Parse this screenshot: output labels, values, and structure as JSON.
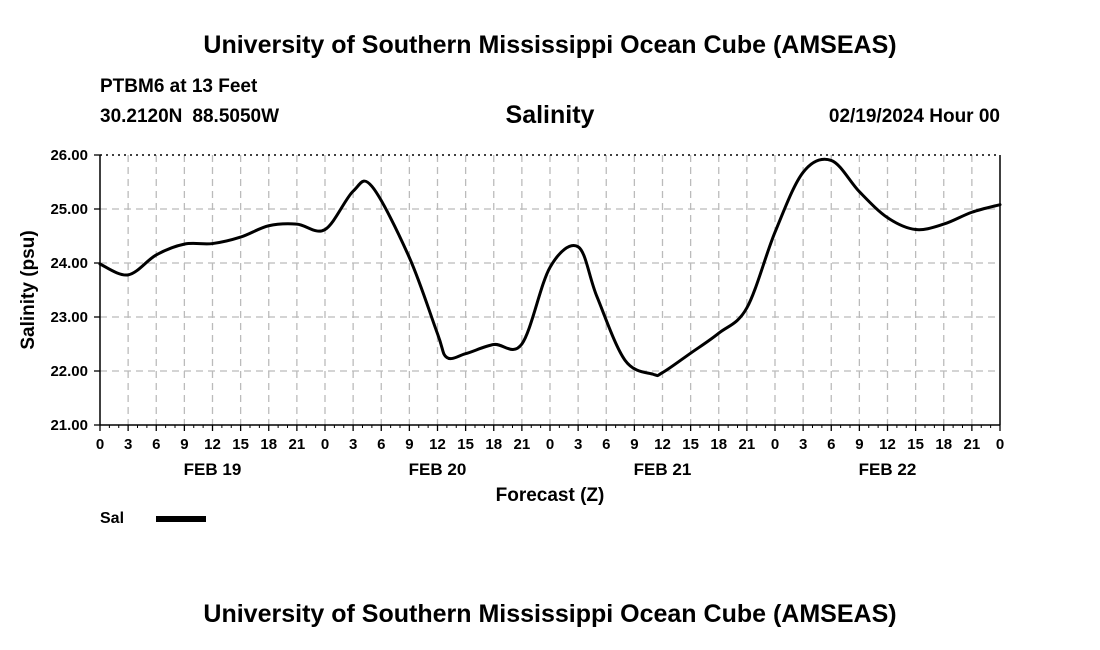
{
  "header": {
    "title": "University of Southern Mississippi Ocean Cube (AMSEAS)",
    "station": "PTBM6 at 13 Feet",
    "lat": "30.2120N",
    "lon": "88.5050W",
    "variable": "Salinity",
    "datetime": "02/19/2024 Hour 00"
  },
  "footer": {
    "title": "University of Southern Mississippi Ocean Cube (AMSEAS)"
  },
  "legend": {
    "label": "Sal",
    "color": "#000000"
  },
  "chart_data": {
    "type": "line",
    "title": "Salinity",
    "xlabel": "Forecast (Z)",
    "ylabel": "Salinity (psu)",
    "ylim": [
      21.0,
      26.0
    ],
    "y_ticks": [
      "21.00",
      "22.00",
      "23.00",
      "24.00",
      "25.00",
      "26.00"
    ],
    "xlim": [
      0,
      96
    ],
    "x_tick_labels": [
      "0",
      "3",
      "6",
      "9",
      "12",
      "15",
      "18",
      "21",
      "0",
      "3",
      "6",
      "9",
      "12",
      "15",
      "18",
      "21",
      "0",
      "3",
      "6",
      "9",
      "12",
      "15",
      "18",
      "21",
      "0",
      "3",
      "6",
      "9",
      "12",
      "15",
      "18",
      "21",
      "0"
    ],
    "day_labels": [
      {
        "label": "FEB 19",
        "hour": 12
      },
      {
        "label": "FEB 20",
        "hour": 36
      },
      {
        "label": "FEB 21",
        "hour": 60
      },
      {
        "label": "FEB 22",
        "hour": 84
      }
    ],
    "grid": true,
    "series": [
      {
        "name": "Sal",
        "color": "#000000",
        "x": [
          0,
          3,
          6,
          9,
          12,
          15,
          18,
          21,
          24,
          27,
          29,
          33,
          36,
          37,
          39,
          42,
          45,
          48,
          51,
          53,
          56,
          59,
          60,
          63,
          66,
          69,
          72,
          75,
          78,
          81,
          84,
          87,
          90,
          93,
          96
        ],
        "values": [
          23.98,
          23.78,
          24.15,
          24.35,
          24.36,
          24.48,
          24.69,
          24.72,
          24.62,
          25.33,
          25.42,
          24.1,
          22.69,
          22.25,
          22.32,
          22.49,
          22.5,
          23.92,
          24.3,
          23.38,
          22.2,
          21.94,
          21.97,
          22.33,
          22.7,
          23.17,
          24.57,
          25.68,
          25.9,
          25.32,
          24.84,
          24.62,
          24.72,
          24.94,
          25.08
        ]
      }
    ]
  }
}
